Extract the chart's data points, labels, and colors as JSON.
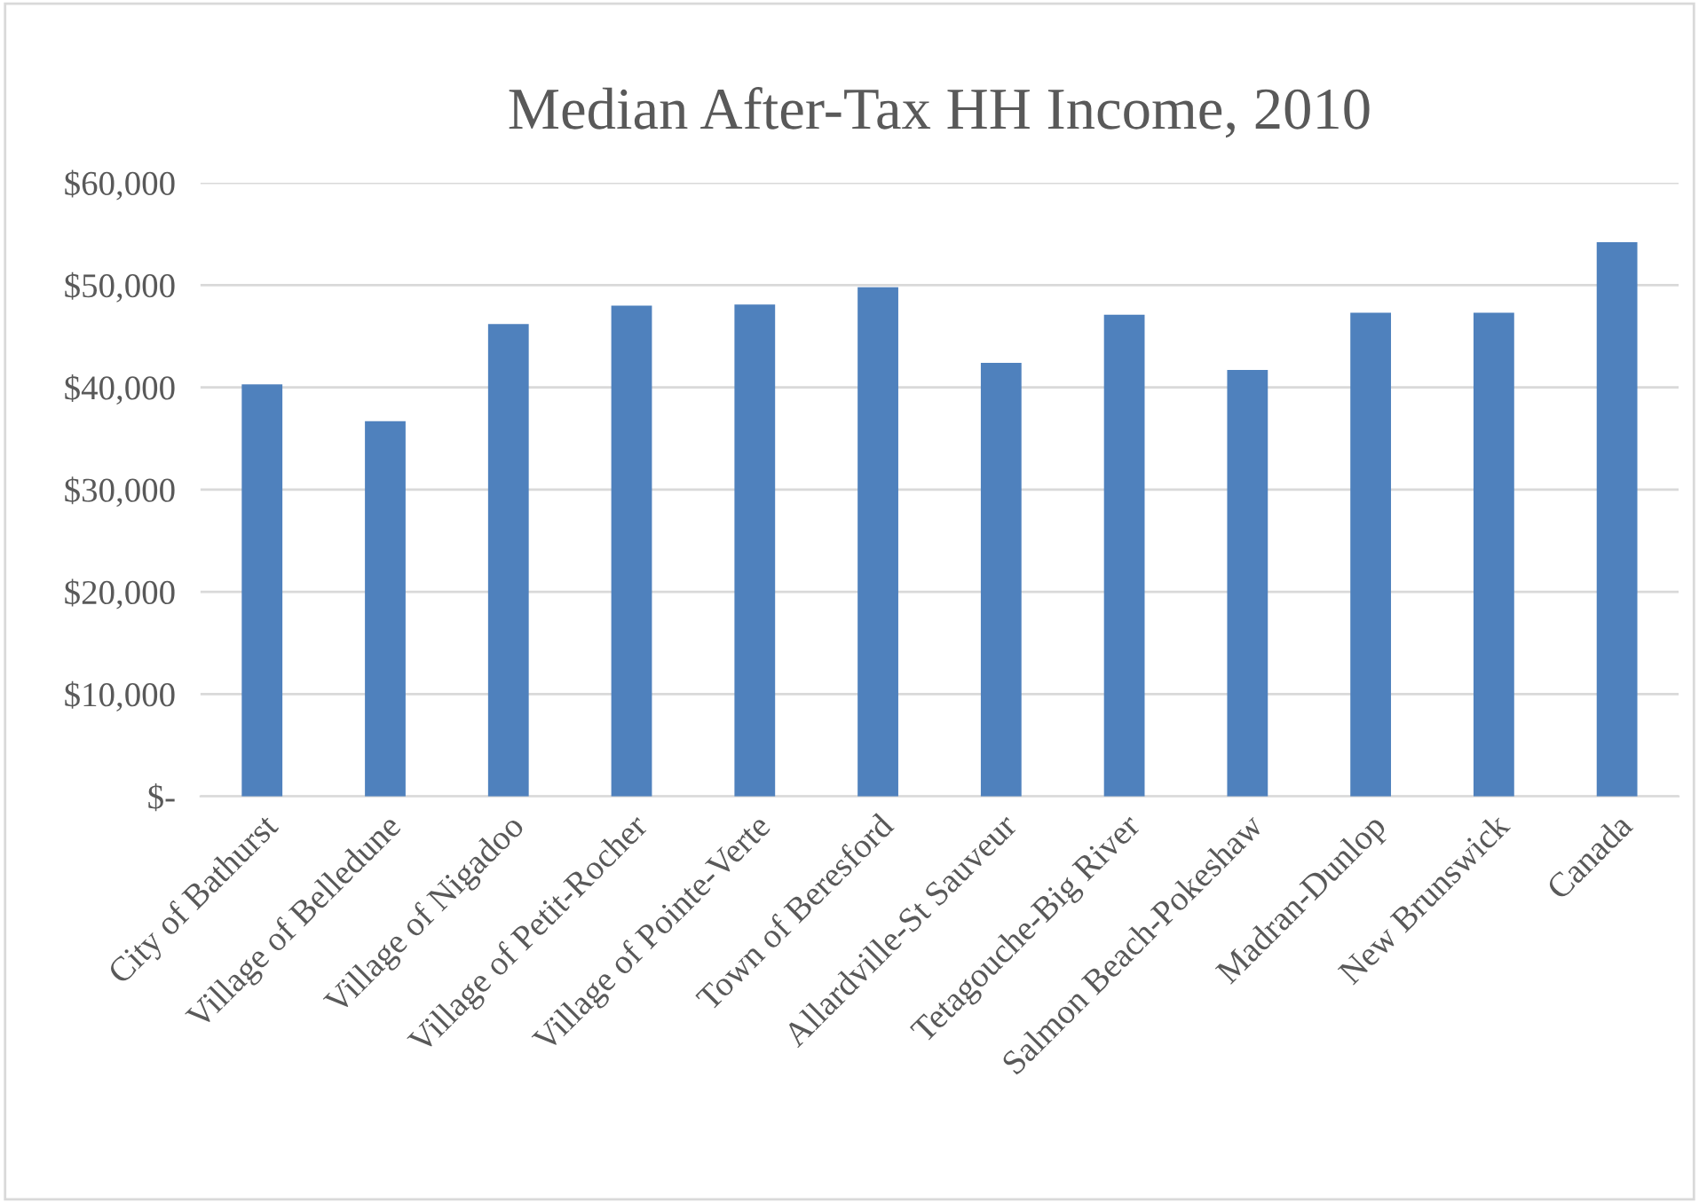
{
  "chart_data": {
    "type": "bar",
    "title": "Median After-Tax HH Income, 2010",
    "categories": [
      "City of Bathurst",
      "Village of Belledune",
      "Village of Nigadoo",
      "Village of Petit-Rocher",
      "Village of Pointe-Verte",
      "Town of Beresford",
      "Allardville-St Sauveur",
      "Tetagouche-Big River",
      "Salmon Beach-Pokeshaw",
      "Madran-Dunlop",
      "New Brunswick",
      "Canada"
    ],
    "values": [
      40300,
      36700,
      46200,
      48000,
      48100,
      49800,
      42400,
      47100,
      41700,
      47300,
      47300,
      54200
    ],
    "color": "#4f81bd",
    "ylim": [
      0,
      60000
    ],
    "yticks": [
      {
        "value": 0,
        "label": "$-"
      },
      {
        "value": 10000,
        "label": "$10,000"
      },
      {
        "value": 20000,
        "label": "$20,000"
      },
      {
        "value": 30000,
        "label": "$30,000"
      },
      {
        "value": 40000,
        "label": "$40,000"
      },
      {
        "value": 50000,
        "label": "$50,000"
      },
      {
        "value": 60000,
        "label": "$60,000"
      }
    ],
    "grid": "y"
  }
}
